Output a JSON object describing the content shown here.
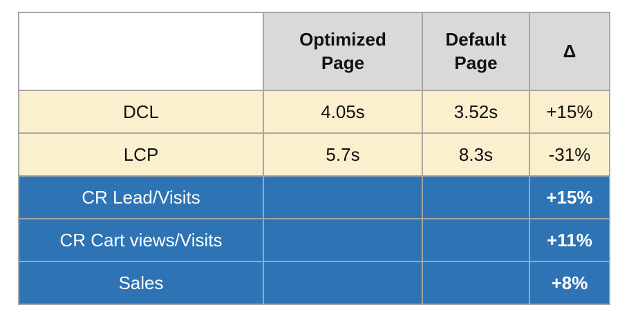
{
  "table": {
    "header": [
      "",
      "Optimized Page",
      "Default Page",
      "Δ"
    ],
    "rows": [
      {
        "label": "DCL",
        "optimized": "4.05s",
        "default": "3.52s",
        "delta": "+15%"
      },
      {
        "label": "LCP",
        "optimized": "5.7s",
        "default": "8.3s",
        "delta": "-31%"
      },
      {
        "label": "CR Lead/Visits",
        "optimized": "",
        "default": "",
        "delta": "+15%"
      },
      {
        "label": "CR Cart views/Visits",
        "optimized": "",
        "default": "",
        "delta": "+11%"
      },
      {
        "label": "Sales",
        "optimized": "",
        "default": "",
        "delta": "+8%"
      }
    ],
    "colors": {
      "header_bg": "#D9D9D9",
      "metric_row_bg": "#FAF0CE",
      "conversion_row_bg": "#2E74B5",
      "border": "#A6A6A6",
      "text_dark": "#111111",
      "text_light": "#FFFFFF"
    }
  },
  "chart_data": {
    "type": "table",
    "columns": [
      "",
      "Optimized Page",
      "Default Page",
      "Δ"
    ],
    "rows": [
      [
        "DCL",
        "4.05s",
        "3.52s",
        "+15%"
      ],
      [
        "LCP",
        "5.7s",
        "8.3s",
        "-31%"
      ],
      [
        "CR Lead/Visits",
        "",
        "",
        "+15%"
      ],
      [
        "CR Cart views/Visits",
        "",
        "",
        "+11%"
      ],
      [
        "Sales",
        "",
        "",
        "+8%"
      ]
    ]
  }
}
